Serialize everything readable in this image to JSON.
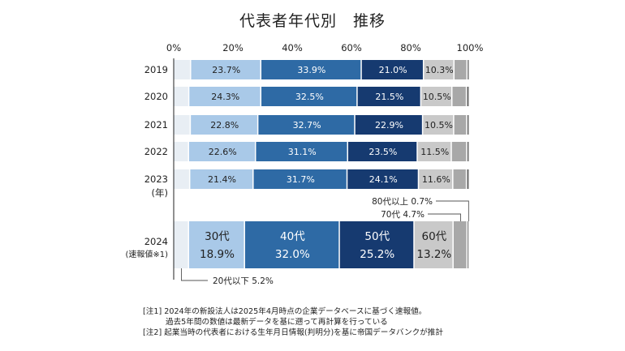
{
  "chart_data": {
    "type": "bar",
    "orientation": "horizontal",
    "stacked": true,
    "title": "代表者年代別　推移",
    "xlim": [
      0,
      100
    ],
    "xticks": [
      "0%",
      "20%",
      "40%",
      "60%",
      "80%",
      "100%"
    ],
    "year_unit_label": "(年)",
    "categories": [
      "2019",
      "2020",
      "2021",
      "2022",
      "2023",
      "2024"
    ],
    "category_sublabels": {
      "2024": "(速報値※1)"
    },
    "series": [
      {
        "name": "20代以下",
        "color": "#e8eef4",
        "values": [
          5.9,
          5.3,
          5.8,
          5.2,
          5.6,
          5.2
        ]
      },
      {
        "name": "30代",
        "color": "#a9c9e8",
        "values": [
          23.7,
          24.3,
          22.8,
          22.6,
          21.4,
          18.9
        ]
      },
      {
        "name": "40代",
        "color": "#2e6aa5",
        "values": [
          33.9,
          32.5,
          32.7,
          31.1,
          31.7,
          32.0
        ]
      },
      {
        "name": "50代",
        "color": "#163a70",
        "values": [
          21.0,
          21.5,
          22.9,
          23.5,
          24.1,
          25.2
        ]
      },
      {
        "name": "60代",
        "color": "#c9c9c9",
        "values": [
          10.3,
          10.5,
          10.5,
          11.5,
          11.6,
          13.2
        ]
      },
      {
        "name": "70代",
        "color": "#a8a8a8",
        "values": [
          4.4,
          4.9,
          4.4,
          5.2,
          4.6,
          4.7
        ]
      },
      {
        "name": "80代以上",
        "color": "#6e6e6e",
        "values": [
          0.8,
          1.0,
          0.9,
          0.9,
          1.0,
          0.7
        ]
      }
    ],
    "data_labels": [
      [
        "",
        "23.7%",
        "33.9%",
        "21.0%",
        "10.3%",
        "",
        ""
      ],
      [
        "",
        "24.3%",
        "32.5%",
        "21.5%",
        "10.5%",
        "",
        ""
      ],
      [
        "",
        "22.8%",
        "32.7%",
        "22.9%",
        "10.5%",
        "",
        ""
      ],
      [
        "",
        "22.6%",
        "31.1%",
        "23.5%",
        "11.5%",
        "",
        ""
      ],
      [
        "",
        "21.4%",
        "31.7%",
        "24.1%",
        "11.6%",
        "",
        ""
      ],
      [
        "",
        "30代\n18.9%",
        "40代\n32.0%",
        "50代\n25.2%",
        "60代\n13.2%",
        "",
        ""
      ]
    ],
    "label_colors": [
      "#222222",
      "#222222",
      "#ffffff",
      "#ffffff",
      "#222222",
      "#222222",
      "#222222"
    ],
    "callouts": [
      {
        "text": "80代以上 0.7%",
        "series": 6,
        "row": 5
      },
      {
        "text": "70代 4.7%",
        "series": 5,
        "row": 5
      },
      {
        "text": "20代以下 5.2%",
        "series": 0,
        "row": 5
      }
    ]
  },
  "notes": [
    "[注1] 2024年の新設法人は2025年4月時点の企業データベースに基づく速報値。",
    "過去5年間の数値は最新データを基に遡って再計算を行っている",
    "[注2] 起業当時の代表者における生年月日情報(判明分)を基に帝国データバンクが推計"
  ]
}
